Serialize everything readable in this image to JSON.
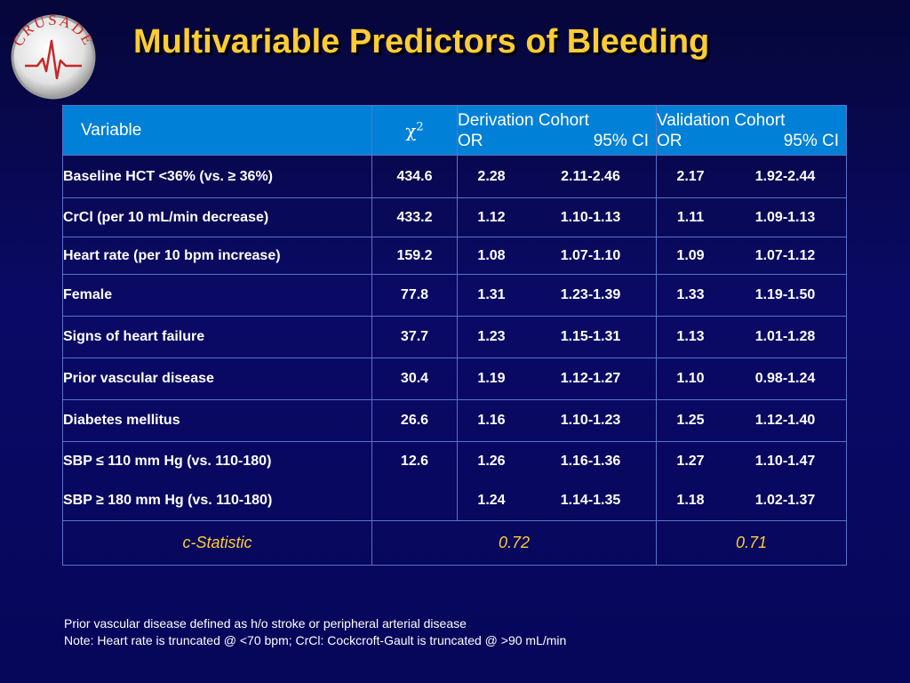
{
  "logo": {
    "text": "CRUSADE",
    "accent": "#c62828"
  },
  "title": "Multivariable Predictors of Bleeding",
  "table": {
    "headers": {
      "variable": "Variable",
      "chi_symbol": "χ",
      "chi_sup": "2",
      "derivation_title": "Derivation Cohort",
      "validation_title": "Validation Cohort",
      "or_label": "OR",
      "ci_label": "95% CI"
    },
    "rows": [
      {
        "variable": "Baseline HCT <36% (vs. ≥ 36%)",
        "chi2": "434.6",
        "der_or": "2.28",
        "der_ci": "2.11-2.46",
        "val_or": "2.17",
        "val_ci": "1.92-2.44"
      },
      {
        "variable": "CrCl (per 10 mL/min decrease)",
        "chi2": "433.2",
        "der_or": "1.12",
        "der_ci": "1.10-1.13",
        "val_or": "1.11",
        "val_ci": "1.09-1.13"
      },
      {
        "variable": "Heart rate (per 10 bpm increase)",
        "chi2": "159.2",
        "der_or": "1.08",
        "der_ci": "1.07-1.10",
        "val_or": "1.09",
        "val_ci": "1.07-1.12"
      },
      {
        "variable": "Female",
        "chi2": "77.8",
        "der_or": "1.31",
        "der_ci": "1.23-1.39",
        "val_or": "1.33",
        "val_ci": "1.19-1.50"
      },
      {
        "variable": "Signs of heart failure",
        "chi2": "37.7",
        "der_or": "1.23",
        "der_ci": "1.15-1.31",
        "val_or": "1.13",
        "val_ci": "1.01-1.28"
      },
      {
        "variable": "Prior vascular disease",
        "chi2": "30.4",
        "der_or": "1.19",
        "der_ci": "1.12-1.27",
        "val_or": "1.10",
        "val_ci": "0.98-1.24"
      },
      {
        "variable": "Diabetes mellitus",
        "chi2": "26.6",
        "der_or": "1.16",
        "der_ci": "1.10-1.23",
        "val_or": "1.25",
        "val_ci": "1.12-1.40"
      }
    ],
    "sbp_row": {
      "variable_1": "SBP ≤ 110 mm Hg (vs. 110-180)",
      "variable_2": "SBP ≥ 180 mm Hg (vs. 110-180)",
      "chi2": "12.6",
      "der_or_1": "1.26",
      "der_ci_1": "1.16-1.36",
      "der_or_2": "1.24",
      "der_ci_2": "1.14-1.35",
      "val_or_1": "1.27",
      "val_ci_1": "1.10-1.47",
      "val_or_2": "1.18",
      "val_ci_2": "1.02-1.37"
    },
    "cstat": {
      "label": "c-Statistic",
      "derivation": "0.72",
      "validation": "0.71"
    }
  },
  "footnotes": [
    "Prior vascular disease defined as h/o stroke or peripheral arterial disease",
    "Note: Heart rate is truncated @ <70 bpm;  CrCl: Cockcroft-Gault is truncated @ >90 mL/min"
  ],
  "colors": {
    "title": "#ffcc33",
    "header_bg": "#0080d6",
    "grid": "#5a73c8",
    "background": "#0a0a66"
  }
}
